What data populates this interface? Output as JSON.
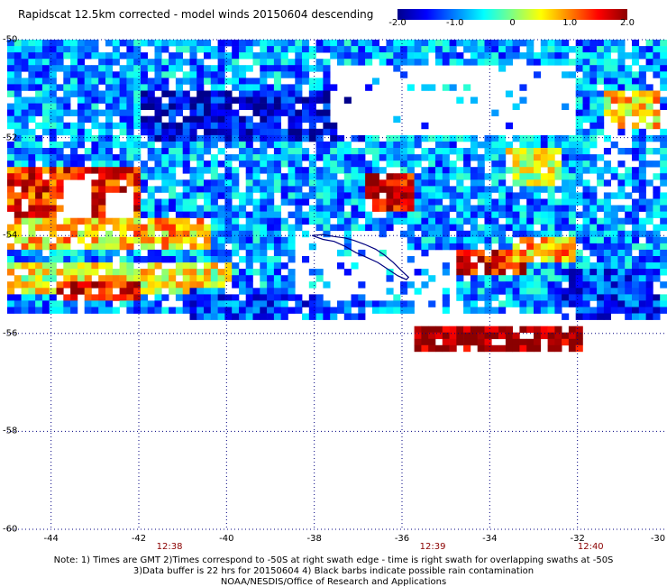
{
  "title": "Rapidscat 12.5km corrected - model winds 20150604 descending",
  "colorbar": {
    "ticks": [
      {
        "value": -2.0,
        "label": "-2.0"
      },
      {
        "value": -1.0,
        "label": "-1.0"
      },
      {
        "value": 0,
        "label": "0"
      },
      {
        "value": 1.0,
        "label": "1.0"
      },
      {
        "value": 2.0,
        "label": "2.0"
      }
    ],
    "range": [
      -2.0,
      2.0
    ],
    "colors": [
      "#00008b",
      "#0000ff",
      "#0080ff",
      "#00ffff",
      "#80ff80",
      "#ffff00",
      "#ff8000",
      "#ff0000",
      "#8b0000"
    ]
  },
  "map": {
    "lon_range": [
      -45,
      -30
    ],
    "lat_range": [
      -60,
      -50
    ],
    "lon_ticks": [
      {
        "value": -44,
        "label": "-44"
      },
      {
        "value": -42,
        "label": "-42"
      },
      {
        "value": -40,
        "label": "-40"
      },
      {
        "value": -38,
        "label": "-38"
      },
      {
        "value": -36,
        "label": "-36"
      },
      {
        "value": -34,
        "label": "-34"
      },
      {
        "value": -32,
        "label": "-32"
      },
      {
        "value": -30,
        "label": "-30"
      }
    ],
    "lat_ticks": [
      {
        "value": -50,
        "label": "-50"
      },
      {
        "value": -52,
        "label": "-52"
      },
      {
        "value": -54,
        "label": "-54"
      },
      {
        "value": -56,
        "label": "-56"
      },
      {
        "value": -58,
        "label": "-58"
      },
      {
        "value": -60,
        "label": "-60"
      }
    ],
    "time_labels": [
      {
        "lon": -41.3,
        "label": "12:38"
      },
      {
        "lon": -35.3,
        "label": "12:39"
      },
      {
        "lon": -31.7,
        "label": "12:40"
      }
    ],
    "grid": "dotted",
    "coastline_color": "#000080",
    "regions": [
      {
        "lon": [
          -45,
          -30
        ],
        "lat": [
          -55.5,
          -50
        ],
        "value": -0.9
      },
      {
        "lon": [
          -45,
          -42
        ],
        "lat": [
          -53.8,
          -52.6
        ],
        "value": 1.4
      },
      {
        "lon": [
          -45,
          -40.5
        ],
        "lat": [
          -54.2,
          -53.6
        ],
        "value": 0.7
      },
      {
        "lon": [
          -45,
          -40
        ],
        "lat": [
          -55.2,
          -54.5
        ],
        "value": 0.4
      },
      {
        "lon": [
          -44,
          -42
        ],
        "lat": [
          -55.3,
          -54.9
        ],
        "value": 1.6
      },
      {
        "lon": [
          -37,
          -35.8
        ],
        "lat": [
          -53.5,
          -52.7
        ],
        "value": 1.7
      },
      {
        "lon": [
          -34.8,
          -33.2
        ],
        "lat": [
          -54.8,
          -54.2
        ],
        "value": 1.6
      },
      {
        "lon": [
          -33.5,
          -32.2
        ],
        "lat": [
          -54.5,
          -54
        ],
        "value": 0.8
      },
      {
        "lon": [
          -35.8,
          -32
        ],
        "lat": [
          -56.3,
          -55.8
        ],
        "value": 2.0
      },
      {
        "lon": [
          -33.8,
          -32.5
        ],
        "lat": [
          -52.9,
          -52.2
        ],
        "value": 0.3
      },
      {
        "lon": [
          -31.5,
          -30.2
        ],
        "lat": [
          -51.8,
          -51
        ],
        "value": 0.6
      },
      {
        "lon": [
          -32.5,
          -30.2
        ],
        "lat": [
          -55.6,
          -54.6
        ],
        "value": -1.3
      },
      {
        "lon": [
          -42,
          -37
        ],
        "lat": [
          -52,
          -51
        ],
        "value": -1.6
      },
      {
        "lon": [
          -41,
          -37
        ],
        "lat": [
          -55.6,
          -55
        ],
        "value": -1.2
      }
    ]
  },
  "notes": [
    "Note: 1) Times are GMT 2)Times correspond to -50S at right swath edge - time is right swath for overlapping swaths at -50S",
    "3)Data buffer is 22 hrs for 20150604 4) Black barbs indicate possible rain contamination",
    "NOAA/NESDIS/Office of Research and Applications"
  ]
}
